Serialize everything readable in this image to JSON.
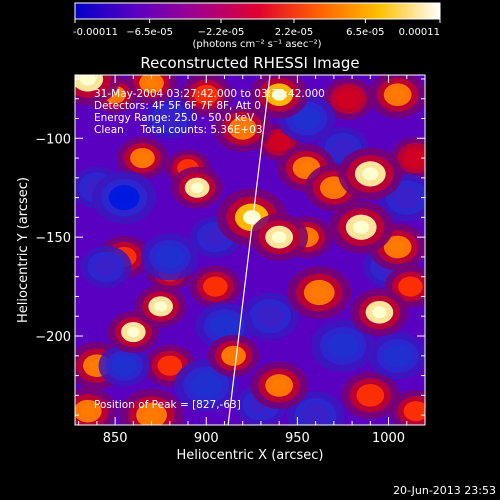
{
  "chart_data": {
    "type": "heatmap",
    "title": "Reconstructed RHESSI Image",
    "xlabel": "Heliocentric X (arcsec)",
    "ylabel": "Heliocentric Y (arcsec)",
    "xlim": [
      828,
      1020
    ],
    "ylim": [
      -245,
      -68
    ],
    "xticks": [
      850,
      900,
      950,
      1000
    ],
    "yticks": [
      -100,
      -150,
      -200
    ],
    "colorbar": {
      "range": [
        -0.00011,
        0.00011
      ],
      "tick_values": [
        -0.00011,
        -6.5e-05,
        -2.2e-05,
        2.2e-05,
        6.5e-05,
        0.00011
      ],
      "tick_labels": [
        "-0.00011",
        "−6.5e-05",
        "−2.2e-05",
        "2.2e-05",
        "6.5e-05",
        "0.00011"
      ],
      "units": "(photons cm⁻² s⁻¹ asec⁻²)",
      "colors": [
        "#0000c8",
        "#5a00c0",
        "#a0008c",
        "#e00030",
        "#ff6000",
        "#ffc000",
        "#ffffff"
      ]
    },
    "annotations": {
      "time_range": "31-May-2004 03:27:42.000 to 03:33:42.000",
      "detectors": "Detectors: 4F 5F 6F 7F 8F, Att 0",
      "energy_range": "Energy Range: 25.0 - 50.0 keV",
      "method_counts": "Clean     Total counts: 5.36E+03",
      "peak_position": "Position of Peak = [827,-63]"
    },
    "limb_line": [
      [
        935,
        -68
      ],
      [
        912,
        -245
      ]
    ],
    "peak": [
      827,
      -63
    ],
    "sources": [
      {
        "x": 835,
        "y": -70,
        "v": 1.0,
        "s": 10
      },
      {
        "x": 850,
        "y": -78,
        "v": 0.7,
        "s": 7
      },
      {
        "x": 870,
        "y": -72,
        "v": 0.6,
        "s": 8
      },
      {
        "x": 900,
        "y": -78,
        "v": 0.5,
        "s": 8
      },
      {
        "x": 940,
        "y": -78,
        "v": 0.8,
        "s": 9
      },
      {
        "x": 978,
        "y": -80,
        "v": 0.4,
        "s": 8
      },
      {
        "x": 1005,
        "y": -78,
        "v": 0.7,
        "s": 9
      },
      {
        "x": 865,
        "y": -110,
        "v": 0.6,
        "s": 8
      },
      {
        "x": 920,
        "y": -95,
        "v": 0.7,
        "s": 9
      },
      {
        "x": 940,
        "y": -102,
        "v": 0.4,
        "s": 7
      },
      {
        "x": 895,
        "y": -125,
        "v": 0.9,
        "s": 8
      },
      {
        "x": 890,
        "y": -115,
        "v": 0.5,
        "s": 7
      },
      {
        "x": 955,
        "y": -115,
        "v": 0.6,
        "s": 9
      },
      {
        "x": 970,
        "y": -125,
        "v": 0.6,
        "s": 9
      },
      {
        "x": 990,
        "y": -118,
        "v": 0.9,
        "s": 10
      },
      {
        "x": 1015,
        "y": -110,
        "v": 0.4,
        "s": 8
      },
      {
        "x": 925,
        "y": -140,
        "v": 0.8,
        "s": 11
      },
      {
        "x": 940,
        "y": -150,
        "v": 0.9,
        "s": 9
      },
      {
        "x": 955,
        "y": -150,
        "v": 0.6,
        "s": 8
      },
      {
        "x": 985,
        "y": -145,
        "v": 0.9,
        "s": 10
      },
      {
        "x": 1005,
        "y": -155,
        "v": 0.6,
        "s": 9
      },
      {
        "x": 855,
        "y": -160,
        "v": 0.5,
        "s": 8
      },
      {
        "x": 880,
        "y": -168,
        "v": 0.5,
        "s": 7
      },
      {
        "x": 905,
        "y": -175,
        "v": 0.45,
        "s": 8
      },
      {
        "x": 875,
        "y": -185,
        "v": 0.95,
        "s": 8
      },
      {
        "x": 962,
        "y": -178,
        "v": 0.7,
        "s": 10
      },
      {
        "x": 995,
        "y": -188,
        "v": 0.9,
        "s": 9
      },
      {
        "x": 1012,
        "y": -175,
        "v": 0.5,
        "s": 8
      },
      {
        "x": 860,
        "y": -198,
        "v": 0.9,
        "s": 8
      },
      {
        "x": 840,
        "y": -215,
        "v": 0.6,
        "s": 9
      },
      {
        "x": 880,
        "y": -215,
        "v": 0.5,
        "s": 8
      },
      {
        "x": 915,
        "y": -210,
        "v": 0.7,
        "s": 8
      },
      {
        "x": 940,
        "y": -225,
        "v": 0.7,
        "s": 9
      },
      {
        "x": 870,
        "y": -240,
        "v": 0.7,
        "s": 10
      },
      {
        "x": 835,
        "y": -238,
        "v": 0.6,
        "s": 9
      },
      {
        "x": 990,
        "y": -230,
        "v": 0.5,
        "s": 9
      },
      {
        "x": 1015,
        "y": -238,
        "v": 0.5,
        "s": 8
      },
      {
        "x": 855,
        "y": -130,
        "v": -0.8,
        "s": 10
      },
      {
        "x": 840,
        "y": -125,
        "v": -0.5,
        "s": 8
      },
      {
        "x": 880,
        "y": -90,
        "v": -0.5,
        "s": 8
      },
      {
        "x": 955,
        "y": -90,
        "v": -0.6,
        "s": 9
      },
      {
        "x": 975,
        "y": -105,
        "v": -0.5,
        "s": 8
      },
      {
        "x": 1010,
        "y": -130,
        "v": -0.5,
        "s": 9
      },
      {
        "x": 905,
        "y": -150,
        "v": -0.5,
        "s": 8
      },
      {
        "x": 845,
        "y": -165,
        "v": -0.5,
        "s": 8
      },
      {
        "x": 880,
        "y": -160,
        "v": -0.7,
        "s": 9
      },
      {
        "x": 910,
        "y": -195,
        "v": -0.6,
        "s": 9
      },
      {
        "x": 935,
        "y": -190,
        "v": -0.4,
        "s": 9
      },
      {
        "x": 1000,
        "y": -165,
        "v": -0.4,
        "s": 8
      },
      {
        "x": 855,
        "y": -215,
        "v": -0.6,
        "s": 8
      },
      {
        "x": 900,
        "y": -225,
        "v": -0.6,
        "s": 10
      },
      {
        "x": 930,
        "y": -235,
        "v": -0.5,
        "s": 8
      },
      {
        "x": 975,
        "y": -205,
        "v": -0.7,
        "s": 10
      },
      {
        "x": 1005,
        "y": -210,
        "v": -0.7,
        "s": 9
      },
      {
        "x": 960,
        "y": -240,
        "v": -0.5,
        "s": 9
      }
    ]
  },
  "footer": {
    "timestamp": "20-Jun-2013 23:53"
  }
}
